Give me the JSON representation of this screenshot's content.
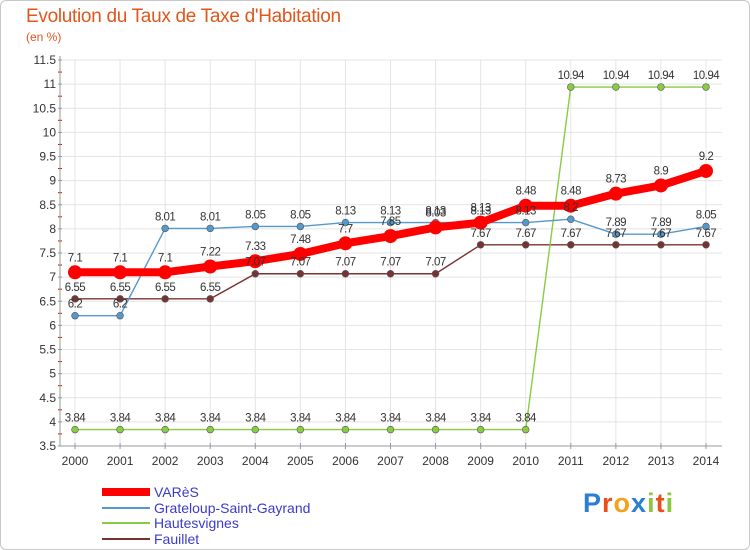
{
  "header": {
    "title": "Evolution du Taux de Taxe d'Habitation",
    "subtitle": "(en %)"
  },
  "logo": {
    "parts": [
      "P",
      "r",
      "o",
      "x",
      "i",
      "t",
      "i"
    ],
    "colors": [
      "#2a7fd4",
      "#e8501a",
      "#f2a21b",
      "#2a7fd4",
      "#8dc63f",
      "#e8501a",
      "#8dc63f"
    ]
  },
  "chart_data": {
    "type": "line",
    "x": [
      "2000",
      "2001",
      "2002",
      "2003",
      "2004",
      "2005",
      "2006",
      "2007",
      "2008",
      "2009",
      "2010",
      "2011",
      "2012",
      "2013",
      "2014"
    ],
    "y_ticks": [
      "3.5",
      "4",
      "4.5",
      "5",
      "5.5",
      "6",
      "6.5",
      "7",
      "7.5",
      "8",
      "8.5",
      "9",
      "9.5",
      "10",
      "10.5",
      "11",
      "11.5"
    ],
    "ylim": [
      3.5,
      11.5
    ],
    "grid": true,
    "legend_position": "bottom-left",
    "series": [
      {
        "name": "VARèS",
        "color": "#ff0000",
        "values": [
          7.1,
          7.1,
          7.1,
          7.22,
          7.33,
          7.48,
          7.7,
          7.85,
          8.03,
          8.13,
          8.48,
          8.48,
          8.73,
          8.9,
          9.2
        ],
        "labels": [
          "7.1",
          "7.1",
          "7.1",
          "7.22",
          "7.33",
          "7.48",
          "7.7",
          "7.85",
          "8.03",
          "8.13",
          "8.48",
          "8.48",
          "8.73",
          "8.9",
          "9.2"
        ]
      },
      {
        "name": "Grateloup-Saint-Gayrand",
        "color": "#5599cc",
        "values": [
          6.2,
          6.2,
          8.01,
          8.01,
          8.05,
          8.05,
          8.13,
          8.13,
          8.13,
          8.13,
          8.13,
          8.2,
          7.89,
          7.89,
          8.05
        ],
        "labels": [
          "6.2",
          "6.2",
          "8.01",
          "8.01",
          "8.05",
          "8.05",
          "8.13",
          "8.13",
          "8.13",
          "8.13",
          "8.13",
          "8.2",
          "7.89",
          "7.89",
          "8.05"
        ]
      },
      {
        "name": "Hautesvignes",
        "color": "#88cc44",
        "values": [
          3.84,
          3.84,
          3.84,
          3.84,
          3.84,
          3.84,
          3.84,
          3.84,
          3.84,
          3.84,
          3.84,
          10.94,
          10.94,
          10.94,
          10.94
        ],
        "labels": [
          "3.84",
          "3.84",
          "3.84",
          "3.84",
          "3.84",
          "3.84",
          "3.84",
          "3.84",
          "3.84",
          "3.84",
          "3.84",
          "10.94",
          "10.94",
          "10.94",
          "10.94"
        ]
      },
      {
        "name": "Fauillet",
        "color": "#773333",
        "values": [
          6.55,
          6.55,
          6.55,
          6.55,
          7.07,
          7.07,
          7.07,
          7.07,
          7.07,
          7.67,
          7.67,
          7.67,
          7.67,
          7.67,
          7.67
        ],
        "labels": [
          "6.55",
          "6.55",
          "6.55",
          "6.55",
          "7.07",
          "7.07",
          "7.07",
          "7.07",
          "7.07",
          "7.67",
          "7.67",
          "7.67",
          "7.67",
          "7.67",
          "7.67"
        ]
      }
    ]
  }
}
